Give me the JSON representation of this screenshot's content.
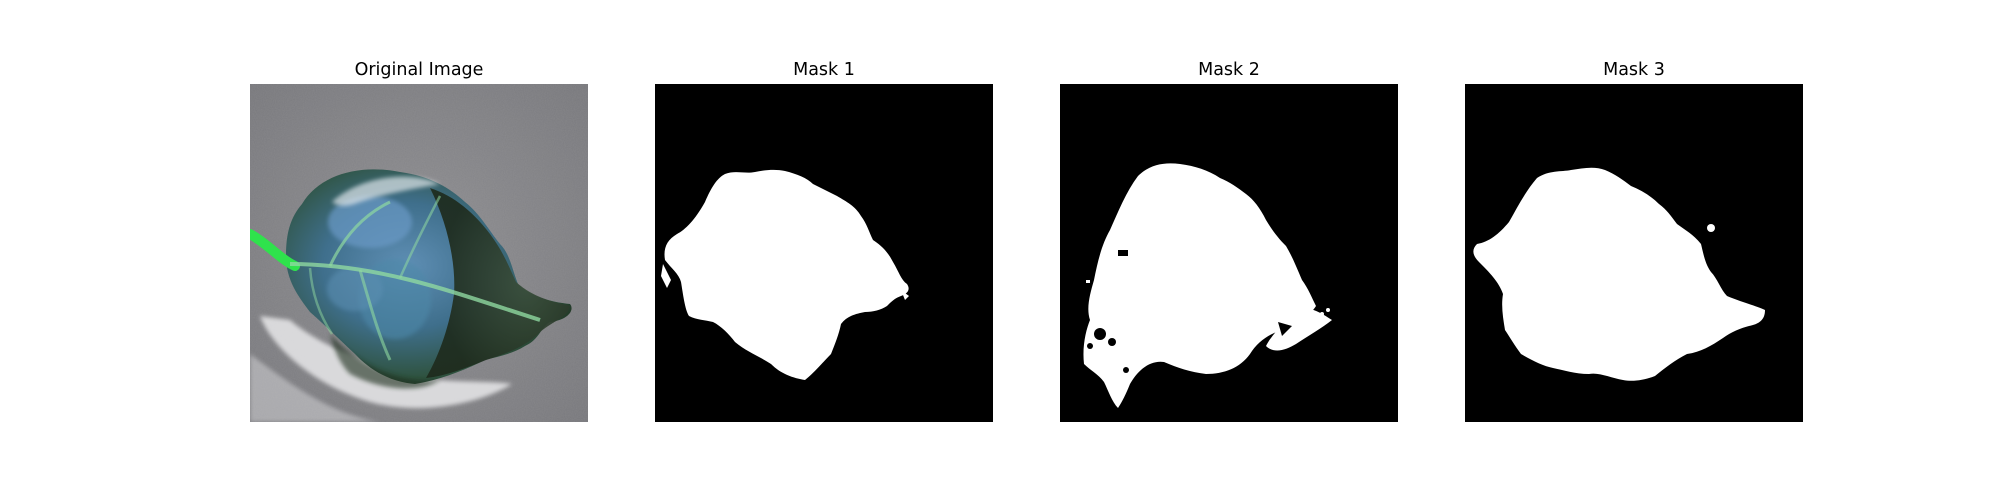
{
  "panels": [
    {
      "title": "Original Image"
    },
    {
      "title": "Mask 1"
    },
    {
      "title": "Mask 2"
    },
    {
      "title": "Mask 3"
    }
  ],
  "colors": {
    "background": "#808083",
    "leaf_dark": "#2f4a2e",
    "leaf_blue": "#4a7fa8",
    "vein_green": "#2ee34a",
    "mask_bg": "#000000",
    "mask_fg": "#ffffff"
  }
}
